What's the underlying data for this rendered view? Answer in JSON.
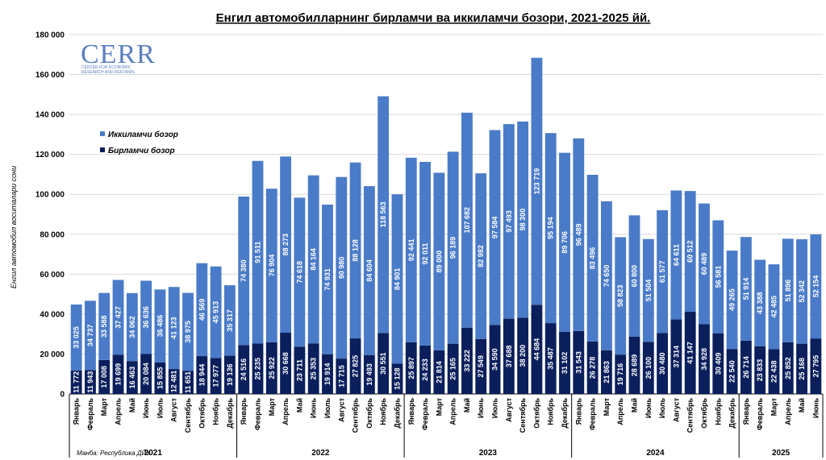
{
  "title": "Енгил автомобилларнинг бирламчи ва иккиламчи бозори, 2021-2025 йй.",
  "logo": {
    "text": "CERR",
    "subtitle_line1": "CENTER FOR ECONOMIC",
    "subtitle_line2": "RESEARCH AND REFORMS"
  },
  "source": "Манба: Республика ДЙХ",
  "colors": {
    "primary": "#0a1f5c",
    "secondary": "#4a7bc8",
    "grid": "#d9d9d9"
  },
  "chart_data": {
    "type": "bar",
    "stacked": true,
    "title": "Енгил автомобилларнинг бирламчи ва иккиламчи бозори, 2021-2025 йй.",
    "ylabel": "Енгил автомобил воситалари сони",
    "xlabel": "",
    "ylim": [
      0,
      180000
    ],
    "yticks": [
      0,
      20000,
      40000,
      60000,
      80000,
      100000,
      120000,
      140000,
      160000,
      180000
    ],
    "ytick_labels": [
      "0",
      "20 000",
      "40 000",
      "60 000",
      "80 000",
      "100 000",
      "120 000",
      "140 000",
      "160 000",
      "180 000"
    ],
    "grid": true,
    "legend_position": "upper-left",
    "categories": [
      "Январь",
      "Февраль",
      "Март",
      "Апрель",
      "Май",
      "Июнь",
      "Июль",
      "Август",
      "Сентябрь",
      "Октябрь",
      "Ноябрь",
      "Декабрь",
      "Январь",
      "Февраль",
      "Март",
      "Апрель",
      "Май",
      "Июнь",
      "Июль",
      "Август",
      "Сентябрь",
      "Октябрь",
      "Ноябрь",
      "Декабрь",
      "Январь",
      "Февраль",
      "Март",
      "Апрель",
      "Май",
      "Июнь",
      "Июль",
      "Август",
      "Сентябрь",
      "Октябрь",
      "Ноябрь",
      "Декабрь",
      "Январь",
      "Февраль",
      "Март",
      "Апрель",
      "Май",
      "Июнь",
      "Июль",
      "Август",
      "Сентябрь",
      "Октябрь",
      "Ноябрь",
      "Декабрь",
      "Январь",
      "Февраль",
      "Март",
      "Апрель",
      "Май",
      "Июнь"
    ],
    "years": [
      {
        "label": "2021",
        "count": 12
      },
      {
        "label": "2022",
        "count": 12
      },
      {
        "label": "2023",
        "count": 12
      },
      {
        "label": "2024",
        "count": 12
      },
      {
        "label": "2025",
        "count": 6
      }
    ],
    "series": [
      {
        "name": "Бирламчи бозор",
        "color": "#0a1f5c",
        "values": [
          11772,
          11943,
          17008,
          19699,
          16463,
          20084,
          15855,
          12481,
          11651,
          18944,
          17977,
          19136,
          24516,
          25235,
          25922,
          30668,
          23711,
          25353,
          19914,
          17715,
          27825,
          19493,
          30551,
          15128,
          25897,
          24233,
          21814,
          25165,
          33222,
          27549,
          34590,
          37688,
          38200,
          44684,
          35487,
          31102,
          31543,
          26278,
          21863,
          19716,
          28689,
          26100,
          30480,
          37314,
          41147,
          34928,
          30409,
          22540,
          26714,
          23833,
          22438,
          25852,
          25168,
          27795
        ],
        "labels": [
          "11 772",
          "11 943",
          "17 008",
          "19 699",
          "16 463",
          "20 084",
          "15 855",
          "12 481",
          "11 651",
          "18 944",
          "17 977",
          "19 136",
          "24 516",
          "25 235",
          "25 922",
          "30 668",
          "23 711",
          "25 353",
          "19 914",
          "17 715",
          "27 825",
          "19 493",
          "30 551",
          "15 128",
          "25 897",
          "24 233",
          "21 814",
          "25 165",
          "33 222",
          "27 549",
          "34 590",
          "37 688",
          "38 200",
          "44 684",
          "35 487",
          "31 102",
          "31 543",
          "26 278",
          "21 863",
          "19 716",
          "28 689",
          "26 100",
          "30 480",
          "37 314",
          "41 147",
          "34 928",
          "30 409",
          "22 540",
          "26 714",
          "23 833",
          "22 438",
          "25 852",
          "25 168",
          "27 795"
        ]
      },
      {
        "name": "Иккиламчи бозор",
        "color": "#4a7bc8",
        "values": [
          33025,
          34737,
          33588,
          37427,
          34062,
          36636,
          36486,
          41123,
          38975,
          46569,
          45913,
          35317,
          74380,
          91511,
          76904,
          88273,
          74618,
          84164,
          74931,
          90980,
          88128,
          84604,
          118563,
          84901,
          92441,
          92011,
          89000,
          96189,
          107682,
          82982,
          97584,
          97493,
          98300,
          123719,
          95194,
          89706,
          96489,
          83496,
          74650,
          58823,
          60800,
          51504,
          61577,
          64611,
          60512,
          60489,
          56581,
          49265,
          51914,
          43388,
          42485,
          51896,
          52342,
          52154
        ],
        "labels": [
          "33 025",
          "34 737",
          "33 588",
          "37 427",
          "34 062",
          "36 636",
          "36 486",
          "41 123",
          "38 975",
          "46 569",
          "45 913",
          "35 317",
          "74 380",
          "91 511",
          "76 904",
          "88 273",
          "74 618",
          "84 164",
          "74 931",
          "90 980",
          "88 128",
          "84 604",
          "118 563",
          "84 901",
          "92 441",
          "92 011",
          "89 000",
          "96 189",
          "107 682",
          "82 982",
          "97 584",
          "97 493",
          "98 300",
          "123 719",
          "95 194",
          "89 706",
          "96 489",
          "83 496",
          "74 650",
          "58 823",
          "60 800",
          "51 504",
          "61 577",
          "64 611",
          "60 512",
          "60 489",
          "56 581",
          "49 265",
          "51 914",
          "43 388",
          "42 485",
          "51 896",
          "52 342",
          "52 154"
        ]
      }
    ]
  }
}
